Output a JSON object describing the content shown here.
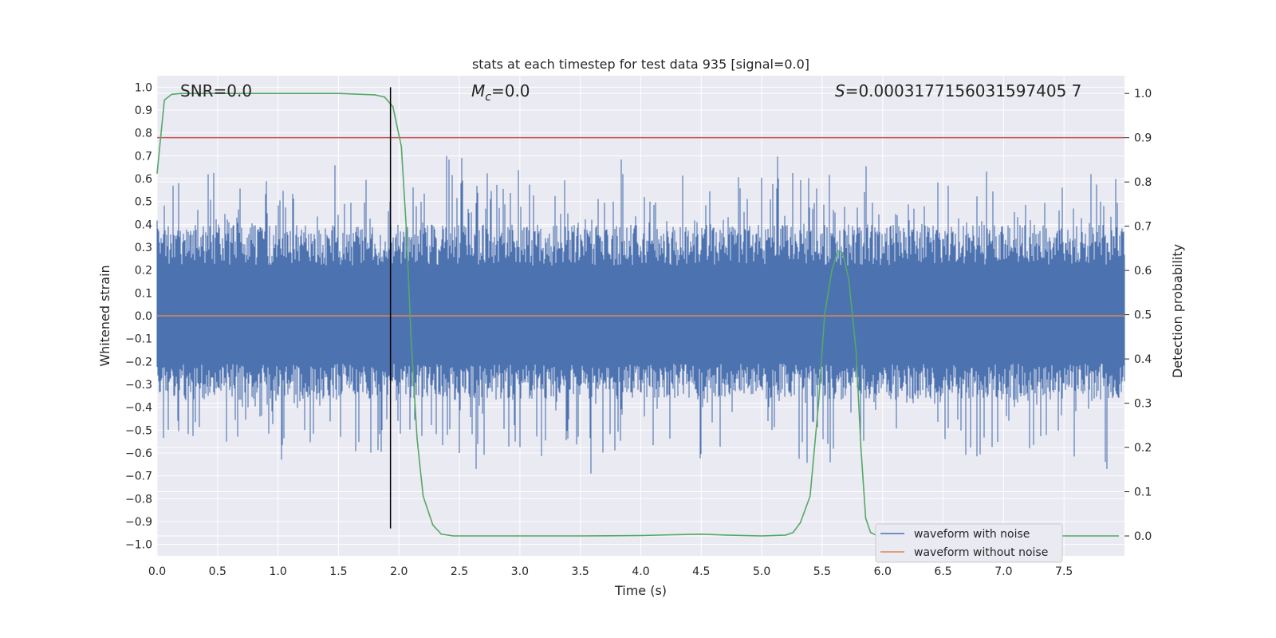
{
  "chart_data": {
    "type": "line",
    "title": "stats at each timestep for test data 935 [signal=0.0]",
    "xlabel": "Time (s)",
    "ylabel": "Whitened strain",
    "y2label": "Detection probability",
    "xlim": [
      0.0,
      8.0
    ],
    "ylim": [
      -1.05,
      1.05
    ],
    "y2lim": [
      -0.045,
      1.04
    ],
    "xticks": [
      "0.0",
      "0.5",
      "1.0",
      "1.5",
      "2.0",
      "2.5",
      "3.0",
      "3.5",
      "4.0",
      "4.5",
      "5.0",
      "5.5",
      "6.0",
      "6.5",
      "7.0",
      "7.5"
    ],
    "yticks": [
      "1.0",
      "0.9",
      "0.8",
      "0.7",
      "0.6",
      "0.5",
      "0.4",
      "0.3",
      "0.2",
      "0.1",
      "0.0",
      "−0.1",
      "−0.2",
      "−0.3",
      "−0.4",
      "−0.5",
      "−0.6",
      "−0.7",
      "−0.8",
      "−0.9",
      "−1.0"
    ],
    "y2ticks": [
      "0.0",
      "0.1",
      "0.2",
      "0.3",
      "0.4",
      "0.5",
      "0.6",
      "0.7",
      "0.8",
      "0.9",
      "1.0"
    ],
    "grid": true,
    "legend_position": "lower-right",
    "annotations": {
      "snr": "SNR=0.0",
      "mc_symbol": "M",
      "mc_sub": "c",
      "mc_value": "=0.0",
      "s_symbol": "S",
      "s_value": "=0.0003177156031597405 7"
    },
    "threshold_line": {
      "y2": 0.9,
      "color": "#c44e52"
    },
    "marker_line": {
      "x": 1.93,
      "color": "#000000",
      "y_range": [
        -0.93,
        1.0
      ]
    },
    "noise_band": {
      "envelope_top": 0.4,
      "envelope_bottom": -0.35,
      "color": "#4c72b0"
    },
    "series": [
      {
        "name": "waveform with noise",
        "color": "#4c72b0"
      },
      {
        "name": "waveform without noise",
        "color": "#dd8452",
        "y_constant": 0.0
      },
      {
        "color": "#55a868",
        "axis": "right",
        "x": [
          0.0,
          0.06,
          0.12,
          0.2,
          0.5,
          1.0,
          1.5,
          1.8,
          1.88,
          1.95,
          2.02,
          2.06,
          2.1,
          2.15,
          2.2,
          2.28,
          2.35,
          2.45,
          2.6,
          3.0,
          3.5,
          4.0,
          4.3,
          4.5,
          4.7,
          5.0,
          5.2,
          5.26,
          5.32,
          5.4,
          5.47,
          5.52,
          5.58,
          5.63,
          5.67,
          5.72,
          5.78,
          5.82,
          5.86,
          5.9,
          5.95,
          6.0,
          6.5,
          7.0,
          7.5,
          7.95
        ],
        "y": [
          0.82,
          0.985,
          0.998,
          1.0,
          1.0,
          1.0,
          1.0,
          0.997,
          0.992,
          0.97,
          0.88,
          0.7,
          0.45,
          0.22,
          0.09,
          0.025,
          0.004,
          0.0,
          0.0,
          0.0,
          0.0,
          0.001,
          0.003,
          0.004,
          0.002,
          0.0,
          0.002,
          0.008,
          0.03,
          0.09,
          0.3,
          0.5,
          0.6,
          0.645,
          0.64,
          0.58,
          0.42,
          0.2,
          0.04,
          0.008,
          0.001,
          0.0,
          0.0,
          0.0,
          0.0,
          0.0
        ]
      }
    ]
  }
}
